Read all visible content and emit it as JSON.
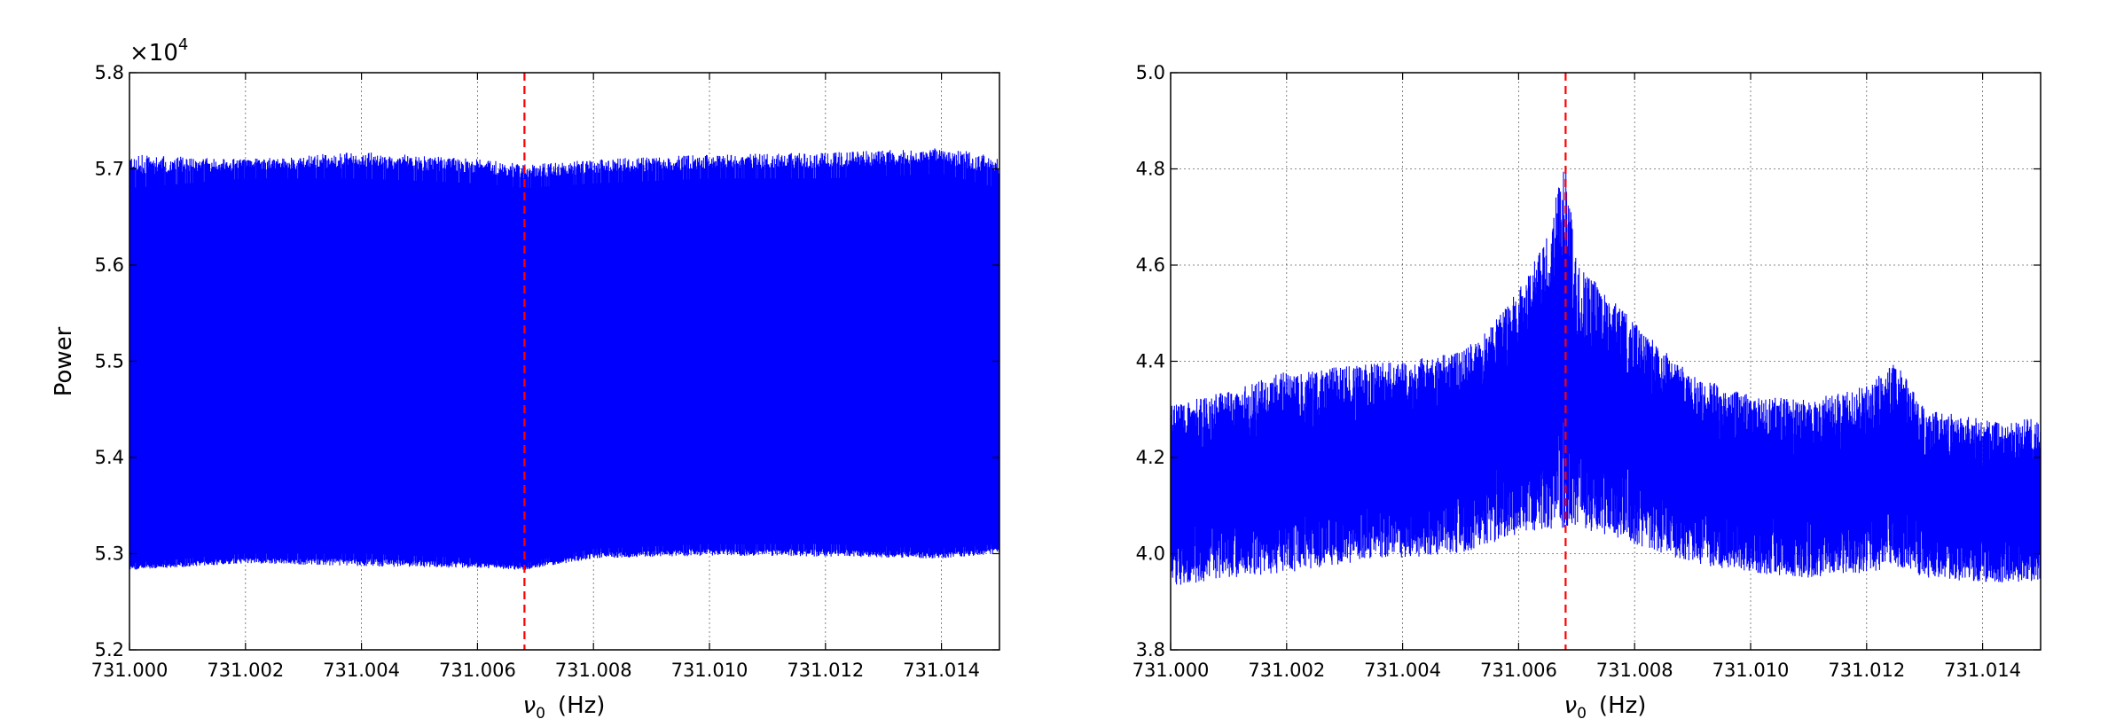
{
  "chart_data": [
    {
      "type": "line",
      "panel": "left",
      "title": "",
      "xlabel": "ν₀  (Hz)",
      "xlabel_symbol": "ν",
      "xlabel_subscript": "0",
      "xlabel_unit": "(Hz)",
      "ylabel": "Power",
      "y_offset_text": "×10",
      "y_offset_exponent": "4",
      "xlim": [
        731.0,
        731.015
      ],
      "ylim": [
        5.2,
        5.8
      ],
      "x_ticks": [
        731.0,
        731.002,
        731.004,
        731.006,
        731.008,
        731.01,
        731.012,
        731.014
      ],
      "x_tick_labels": [
        "731.000",
        "731.002",
        "731.004",
        "731.006",
        "731.008",
        "731.010",
        "731.012",
        "731.014"
      ],
      "y_ticks": [
        5.2,
        5.3,
        5.4,
        5.5,
        5.6,
        5.7,
        5.8
      ],
      "y_tick_labels": [
        "5.2",
        "5.3",
        "5.4",
        "5.5",
        "5.6",
        "5.7",
        "5.8"
      ],
      "grid": true,
      "series": [
        {
          "color": "#0000ff",
          "style": "dense-oscillation",
          "envelope_x": [
            731.0,
            731.002,
            731.004,
            731.006,
            731.0068,
            731.008,
            731.01,
            731.012,
            731.014,
            731.015
          ],
          "envelope_upper": [
            5.715,
            5.71,
            5.718,
            5.71,
            5.705,
            5.71,
            5.715,
            5.717,
            5.722,
            5.715
          ],
          "envelope_lower": [
            5.283,
            5.29,
            5.287,
            5.285,
            5.283,
            5.295,
            5.298,
            5.297,
            5.295,
            5.3
          ],
          "inner_upper": [
            5.68,
            5.69,
            5.69,
            5.685,
            5.68,
            5.685,
            5.69,
            5.69,
            5.695,
            5.68
          ],
          "inner_lower": [
            5.29,
            5.3,
            5.3,
            5.295,
            5.29,
            5.305,
            5.31,
            5.31,
            5.305,
            5.31
          ]
        }
      ],
      "vline": {
        "x": 731.00681,
        "color": "#ff0000",
        "style": "dashed"
      }
    },
    {
      "type": "line",
      "panel": "right",
      "title": "",
      "xlabel": "ν₀  (Hz)",
      "xlabel_symbol": "ν",
      "xlabel_subscript": "0",
      "xlabel_unit": "(Hz)",
      "ylabel": "",
      "xlim": [
        731.0,
        731.015
      ],
      "ylim": [
        3.8,
        5.0
      ],
      "x_ticks": [
        731.0,
        731.002,
        731.004,
        731.006,
        731.008,
        731.01,
        731.012,
        731.014
      ],
      "x_tick_labels": [
        "731.000",
        "731.002",
        "731.004",
        "731.006",
        "731.008",
        "731.010",
        "731.012",
        "731.014"
      ],
      "y_ticks": [
        3.8,
        4.0,
        4.2,
        4.4,
        4.6,
        4.8,
        5.0
      ],
      "y_tick_labels": [
        "3.8",
        "4.0",
        "4.2",
        "4.4",
        "4.6",
        "4.8",
        "5.0"
      ],
      "grid": true,
      "series": [
        {
          "color": "#0000ff",
          "style": "noisy",
          "envelope_x": [
            731.0,
            731.001,
            731.002,
            731.003,
            731.004,
            731.005,
            731.0055,
            731.006,
            731.0065,
            731.0068,
            731.007,
            731.0075,
            731.008,
            731.009,
            731.01,
            731.011,
            731.012,
            731.0125,
            731.013,
            731.014,
            731.015
          ],
          "envelope_upper": [
            4.31,
            4.34,
            4.38,
            4.39,
            4.4,
            4.42,
            4.47,
            4.55,
            4.66,
            4.84,
            4.6,
            4.55,
            4.48,
            4.37,
            4.33,
            4.32,
            4.35,
            4.4,
            4.3,
            4.28,
            4.28
          ],
          "envelope_lower": [
            3.93,
            3.95,
            3.96,
            3.98,
            3.99,
            4.0,
            4.02,
            4.04,
            4.05,
            4.05,
            4.05,
            4.04,
            4.02,
            3.98,
            3.96,
            3.95,
            3.96,
            3.97,
            3.95,
            3.94,
            3.94
          ]
        }
      ],
      "vline": {
        "x": 731.00681,
        "color": "#ff0000",
        "style": "dashed"
      }
    }
  ]
}
